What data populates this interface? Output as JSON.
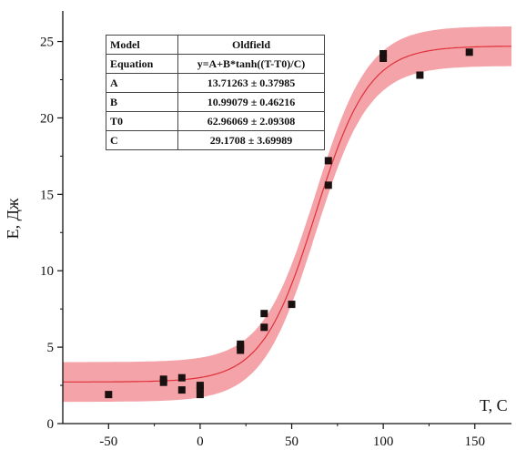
{
  "chart_data": {
    "type": "scatter",
    "title": "",
    "xlabel": "T, C",
    "ylabel": "E, Дж",
    "xlim": [
      -75,
      170
    ],
    "ylim": [
      0,
      27
    ],
    "x_ticks": [
      -50,
      0,
      50,
      100,
      150
    ],
    "y_ticks": [
      0,
      5,
      10,
      15,
      20,
      25
    ],
    "x_tick_labels": [
      "-50",
      "0",
      "50",
      "100",
      "150"
    ],
    "y_tick_labels": [
      "0",
      "5",
      "10",
      "15",
      "20",
      "25"
    ],
    "grid": false,
    "colors": {
      "points": "#1a1010",
      "fit_line": "#e0303a",
      "confidence_band": "#f4a4a8"
    },
    "series": [
      {
        "type": "scatter",
        "x": [
          -50,
          -20,
          -20,
          -10,
          -10,
          0,
          0,
          0,
          22,
          22,
          22,
          35,
          35,
          50,
          70,
          70,
          100,
          100,
          120,
          147
        ],
        "y": [
          1.9,
          2.7,
          2.9,
          3.0,
          2.2,
          1.9,
          2.3,
          2.5,
          4.8,
          5.0,
          5.2,
          6.3,
          7.2,
          7.8,
          15.6,
          17.2,
          23.9,
          24.2,
          22.8,
          24.3
        ]
      }
    ],
    "fit": {
      "model": "Oldfield",
      "equation": "y=A+B*tanh((T-T0)/C)",
      "A": 13.71263,
      "B": 10.99079,
      "T0": 62.96069,
      "C": 29.1708,
      "confidence_half_width": 1.3
    },
    "table": {
      "rows": [
        [
          "Model",
          "Oldfield"
        ],
        [
          "Equation",
          "y=A+B*tanh((T-T0)/C)"
        ],
        [
          "A",
          "13.71263 ± 0.37985"
        ],
        [
          "B",
          "10.99079 ± 0.46216"
        ],
        [
          "T0",
          "62.96069 ± 2.09308"
        ],
        [
          "C",
          "29.1708 ± 3.69989"
        ]
      ]
    }
  }
}
